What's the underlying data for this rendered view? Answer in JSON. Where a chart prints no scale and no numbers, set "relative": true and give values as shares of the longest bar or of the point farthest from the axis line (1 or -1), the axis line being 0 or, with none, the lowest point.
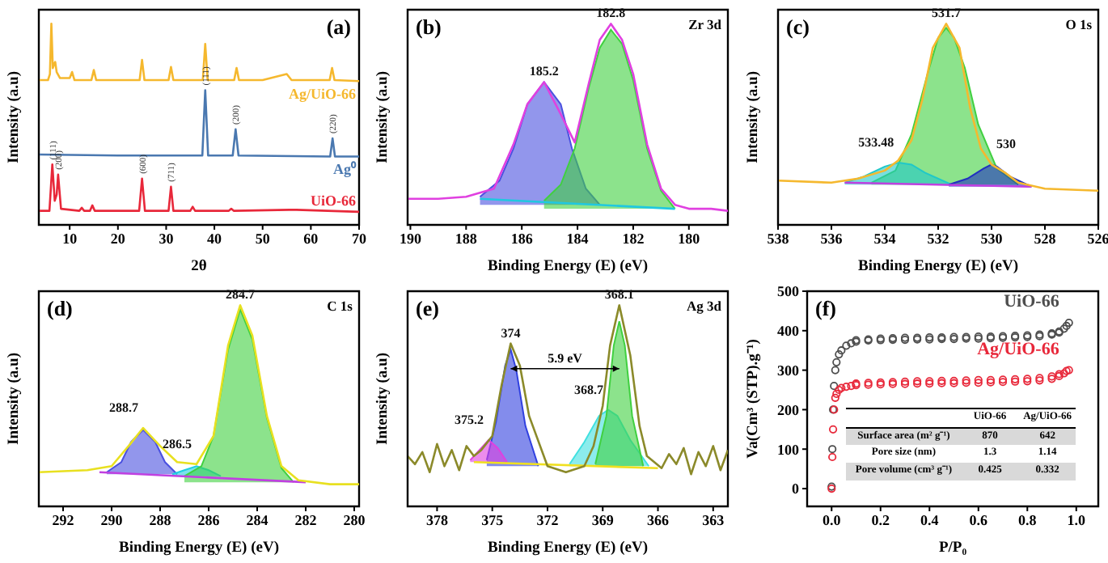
{
  "chart_data": [
    {
      "type": "line",
      "title": "(a)",
      "xlabel": "2θ",
      "ylabel": "Intensity (a.u)",
      "relative": true,
      "xlim": [
        3.6,
        70
      ],
      "xticks": [
        10,
        20,
        30,
        40,
        50,
        60,
        70
      ],
      "series": [
        {
          "name": "Ag/UiO-66",
          "color": "#f5b82e",
          "x": [
            3.6,
            5.5,
            5.9,
            6.2,
            6.5,
            6.8,
            7.0,
            7.3,
            8,
            10,
            10.5,
            11,
            14.5,
            15,
            15.5,
            20,
            24.5,
            25,
            25.5,
            30.5,
            31,
            31.5,
            35,
            37.6,
            38.1,
            38.6,
            42,
            44.1,
            44.6,
            45.1,
            50,
            55,
            56,
            60,
            63.9,
            64.4,
            64.9,
            70
          ],
          "values": [
            0.72,
            0.72,
            0.75,
            1.0,
            0.78,
            0.8,
            0.81,
            0.76,
            0.73,
            0.73,
            0.76,
            0.72,
            0.72,
            0.77,
            0.72,
            0.72,
            0.72,
            0.82,
            0.72,
            0.72,
            0.785,
            0.72,
            0.72,
            0.72,
            0.9,
            0.72,
            0.72,
            0.72,
            0.78,
            0.72,
            0.72,
            0.75,
            0.72,
            0.72,
            0.72,
            0.78,
            0.72,
            0.715
          ]
        },
        {
          "name": "Ag⁰",
          "color": "#4a78b0",
          "x": [
            3.6,
            20,
            37.5,
            38.1,
            38.7,
            43.8,
            44.4,
            45,
            64,
            64.5,
            65,
            70
          ],
          "values": [
            0.35,
            0.345,
            0.345,
            0.67,
            0.345,
            0.345,
            0.475,
            0.345,
            0.34,
            0.43,
            0.34,
            0.34
          ]
        },
        {
          "name": "UiO-66",
          "color": "#e8283a",
          "x": [
            3.6,
            5.8,
            6.4,
            6.9,
            7.3,
            7.6,
            8.2,
            12,
            12.5,
            13,
            14.2,
            14.7,
            15.2,
            24.4,
            25,
            25.6,
            30.5,
            31,
            31.5,
            35,
            35.5,
            36,
            43,
            43.5,
            44,
            55.5,
            57,
            70
          ],
          "values": [
            0.07,
            0.07,
            0.3,
            0.12,
            0.15,
            0.25,
            0.08,
            0.07,
            0.085,
            0.07,
            0.07,
            0.097,
            0.07,
            0.07,
            0.23,
            0.07,
            0.07,
            0.19,
            0.07,
            0.07,
            0.09,
            0.07,
            0.07,
            0.08,
            0.07,
            0.075,
            0.075,
            0.065
          ]
        }
      ],
      "annotations": [
        {
          "text": "(111)",
          "x": 38.1,
          "y": 0.67
        },
        {
          "text": "(200)",
          "x": 44.4,
          "y": 0.475
        },
        {
          "text": "(220)",
          "x": 64.5,
          "y": 0.43
        },
        {
          "text": "(111)",
          "x": 6.4,
          "y": 0.3
        },
        {
          "text": "(200)",
          "x": 7.6,
          "y": 0.25
        },
        {
          "text": "(600)",
          "x": 25,
          "y": 0.23
        },
        {
          "text": "(711)",
          "x": 31,
          "y": 0.19
        }
      ]
    },
    {
      "type": "area",
      "title": "(b)",
      "subtitle": "Zr 3d",
      "xlabel": "Binding Energy (E) (eV)",
      "ylabel": "Intensity (a.u)",
      "relative": true,
      "xlim": [
        190.1,
        178.6
      ],
      "xticks": [
        190,
        188,
        186,
        184,
        182,
        180
      ],
      "series": [
        {
          "color": "#4a50e0",
          "x": [
            183.2,
            183.7,
            184.2,
            184.6,
            185.2,
            185.8,
            186.3,
            186.8,
            187.5
          ],
          "values": [
            0.1,
            0.18,
            0.38,
            0.6,
            0.71,
            0.6,
            0.38,
            0.22,
            0.14
          ]
        },
        {
          "color": "#40d040",
          "x": [
            180.5,
            181,
            181.5,
            182,
            182.4,
            182.8,
            183.2,
            183.6,
            184.1,
            184.6,
            185.2
          ],
          "values": [
            0.08,
            0.17,
            0.38,
            0.72,
            0.9,
            0.97,
            0.88,
            0.68,
            0.38,
            0.2,
            0.12
          ]
        },
        {
          "type": "line",
          "color": "#20c8e0",
          "x": [
            180.5,
            187.5
          ],
          "values": [
            0.08,
            0.13
          ]
        },
        {
          "type": "line",
          "color": "#e040e0",
          "x": [
            178.6,
            179.2,
            180,
            180.5,
            181,
            181.5,
            182,
            182.4,
            182.8,
            183.2,
            183.6,
            184.1,
            184.6,
            185.2,
            185.8,
            186.3,
            187,
            188,
            189,
            190.1
          ],
          "values": [
            0.07,
            0.08,
            0.08,
            0.1,
            0.18,
            0.4,
            0.75,
            0.92,
            1.0,
            0.92,
            0.7,
            0.41,
            0.55,
            0.71,
            0.6,
            0.4,
            0.18,
            0.14,
            0.13,
            0.13
          ]
        }
      ],
      "annotations": [
        {
          "text": "185.2",
          "x": 185.2,
          "y": 0.71
        },
        {
          "text": "182.8",
          "x": 182.8,
          "y": 1.0
        }
      ]
    },
    {
      "type": "area",
      "title": "(c)",
      "subtitle": "O 1s",
      "xlabel": "Binding Energy (E) (eV)",
      "ylabel": "Intensity (a.u)",
      "relative": true,
      "xlim": [
        538,
        526
      ],
      "xticks": [
        538,
        536,
        534,
        532,
        530,
        528,
        526
      ],
      "series": [
        {
          "color": "#40d040",
          "x": [
            529,
            529.8,
            530.5,
            531,
            531.4,
            531.7,
            532,
            532.4,
            533,
            533.6,
            534.5
          ],
          "values": [
            0.2,
            0.28,
            0.5,
            0.78,
            0.93,
            0.98,
            0.93,
            0.75,
            0.45,
            0.27,
            0.21
          ]
        },
        {
          "color": "#20c8c8",
          "x": [
            531.5,
            532.5,
            533,
            533.48,
            534,
            534.8,
            535.5
          ],
          "values": [
            0.2,
            0.26,
            0.3,
            0.31,
            0.29,
            0.24,
            0.21
          ]
        },
        {
          "color": "#2030c0",
          "x": [
            528.5,
            529.3,
            529.8,
            530,
            530.3,
            530.9,
            531.6
          ],
          "values": [
            0.19,
            0.24,
            0.29,
            0.3,
            0.28,
            0.23,
            0.2
          ]
        },
        {
          "type": "line",
          "color": "#c040e0",
          "x": [
            528.5,
            535.5
          ],
          "values": [
            0.19,
            0.21
          ]
        },
        {
          "type": "line",
          "color": "#f5b82e",
          "x": [
            526,
            528,
            529,
            529.5,
            530,
            530.4,
            530.8,
            531.2,
            531.7,
            532.2,
            532.6,
            533,
            533.5,
            534,
            535,
            536,
            538
          ],
          "values": [
            0.17,
            0.18,
            0.21,
            0.26,
            0.3,
            0.38,
            0.58,
            0.88,
            1.0,
            0.88,
            0.62,
            0.42,
            0.32,
            0.27,
            0.23,
            0.21,
            0.22
          ]
        }
      ],
      "annotations": [
        {
          "text": "531.7",
          "x": 531.7,
          "y": 1.0
        },
        {
          "text": "533.48",
          "x": 533.48,
          "y": 0.31
        },
        {
          "text": "530",
          "x": 530,
          "y": 0.3
        }
      ]
    },
    {
      "type": "area",
      "title": "(d)",
      "subtitle": "C 1s",
      "xlabel": "Binding Energy (E) (eV)",
      "ylabel": "Intensity (a.u)",
      "relative": true,
      "xlim": [
        293,
        279.8
      ],
      "xticks": [
        292,
        290,
        288,
        286,
        284,
        282,
        280
      ],
      "series": [
        {
          "color": "#4a50e0",
          "x": [
            287.3,
            287.8,
            288.2,
            288.7,
            289.2,
            289.6,
            290.2
          ],
          "values": [
            0.16,
            0.22,
            0.32,
            0.38,
            0.32,
            0.22,
            0.17
          ]
        },
        {
          "color": "#20d0e0",
          "x": [
            285.5,
            286,
            286.5,
            287,
            287.5
          ],
          "values": [
            0.15,
            0.18,
            0.2,
            0.18,
            0.16
          ]
        },
        {
          "color": "#40d040",
          "x": [
            282.5,
            283,
            283.6,
            284.2,
            284.7,
            285.2,
            285.8,
            286.3,
            287
          ],
          "values": [
            0.12,
            0.19,
            0.44,
            0.83,
            0.98,
            0.78,
            0.35,
            0.2,
            0.15
          ]
        },
        {
          "type": "line",
          "color": "#c040e0",
          "x": [
            282,
            290.5
          ],
          "values": [
            0.12,
            0.17
          ]
        },
        {
          "type": "line",
          "color": "#e8e020",
          "x": [
            279.8,
            281,
            282.3,
            283,
            283.6,
            284.2,
            284.7,
            285.2,
            285.8,
            286.5,
            287.3,
            288,
            288.7,
            289.3,
            290,
            291,
            293
          ],
          "values": [
            0.11,
            0.11,
            0.13,
            0.2,
            0.45,
            0.85,
            1.0,
            0.8,
            0.35,
            0.21,
            0.22,
            0.3,
            0.39,
            0.3,
            0.2,
            0.18,
            0.17
          ]
        }
      ],
      "annotations": [
        {
          "text": "284.7",
          "x": 284.7,
          "y": 1.0
        },
        {
          "text": "288.7",
          "x": 288.7,
          "y": 0.39
        },
        {
          "text": "286.5",
          "x": 286.5,
          "y": 0.21
        }
      ]
    },
    {
      "type": "area",
      "title": "(e)",
      "subtitle": "Ag 3d",
      "xlabel": "Binding Energy (E) (eV)",
      "ylabel": "Intensity (a.u)",
      "relative": true,
      "xlim": [
        379.6,
        362.2
      ],
      "xticks": [
        378,
        375,
        372,
        369,
        366,
        363
      ],
      "series": [
        {
          "color": "#3040e0",
          "x": [
            372.5,
            373.2,
            373.7,
            374,
            374.3,
            374.8,
            375.3
          ],
          "values": [
            0.2,
            0.4,
            0.68,
            0.78,
            0.7,
            0.42,
            0.23
          ]
        },
        {
          "color": "#e040e0",
          "x": [
            374.2,
            374.7,
            375.2,
            375.7,
            376.2
          ],
          "values": [
            0.22,
            0.29,
            0.33,
            0.28,
            0.23
          ]
        },
        {
          "color": "#40e0e0",
          "x": [
            366.5,
            367.5,
            368.2,
            368.7,
            369.2,
            370,
            370.8
          ],
          "values": [
            0.2,
            0.33,
            0.45,
            0.48,
            0.45,
            0.32,
            0.21
          ]
        },
        {
          "color": "#40d040",
          "x": [
            366.8,
            367.4,
            367.8,
            368.1,
            368.4,
            368.8,
            369.4
          ],
          "values": [
            0.2,
            0.45,
            0.8,
            0.92,
            0.8,
            0.45,
            0.21
          ]
        },
        {
          "type": "line",
          "color": "#f0e020",
          "x": [
            366,
            376
          ],
          "values": [
            0.19,
            0.22
          ]
        },
        {
          "type": "line",
          "color": "#8b8a2a",
          "x": [
            362.2,
            362.6,
            363,
            363.4,
            363.8,
            364.2,
            364.6,
            365,
            365.4,
            365.8,
            366.2,
            366.6,
            367,
            367.5,
            368.1,
            368.6,
            369,
            369.5,
            370,
            371,
            372,
            373,
            373.5,
            374,
            374.5,
            375,
            375.6,
            376,
            376.4,
            376.8,
            377.2,
            377.6,
            378,
            378.4,
            378.8,
            379.2,
            379.6
          ],
          "values": [
            0.28,
            0.18,
            0.3,
            0.2,
            0.27,
            0.16,
            0.29,
            0.21,
            0.26,
            0.19,
            0.22,
            0.25,
            0.4,
            0.75,
            1.0,
            0.8,
            0.5,
            0.3,
            0.2,
            0.17,
            0.2,
            0.45,
            0.7,
            0.81,
            0.6,
            0.35,
            0.28,
            0.25,
            0.3,
            0.18,
            0.28,
            0.2,
            0.31,
            0.17,
            0.27,
            0.21,
            0.25
          ]
        }
      ],
      "annotations": [
        {
          "text": "374",
          "x": 374,
          "y": 0.81
        },
        {
          "text": "368.1",
          "x": 368.1,
          "y": 1.0
        },
        {
          "text": "375.2",
          "x": 375.2,
          "y": 0.33
        },
        {
          "text": "368.7",
          "x": 368.7,
          "y": 0.48
        },
        "5.9 eV"
      ]
    },
    {
      "type": "scatter",
      "title": "(f)",
      "xlabel": "P/P₀",
      "ylabel": "Va(Cm³ (STP).g⁻¹)",
      "marker": "circle",
      "xlim": [
        -0.1,
        1.09
      ],
      "xticks": [
        {
          "value": 0,
          "label": "0.0"
        },
        0.2,
        0.4,
        0.6,
        0.8,
        {
          "value": 1,
          "label": "1.0"
        }
      ],
      "ylim": [
        -45,
        500
      ],
      "yticks": [
        0,
        100,
        200,
        300,
        400,
        500
      ],
      "x": [
        0.0,
        0.003,
        0.006,
        0.01,
        0.015,
        0.02,
        0.03,
        0.04,
        0.06,
        0.08,
        0.1,
        0.15,
        0.2,
        0.25,
        0.3,
        0.35,
        0.4,
        0.45,
        0.5,
        0.55,
        0.6,
        0.65,
        0.7,
        0.75,
        0.8,
        0.85,
        0.9,
        0.93,
        0.95,
        0.97,
        0.96,
        0.93,
        0.9,
        0.85,
        0.8,
        0.75,
        0.7,
        0.65,
        0.6,
        0.55,
        0.5,
        0.45,
        0.4,
        0.35,
        0.3,
        0.25,
        0.2,
        0.15,
        0.1
      ],
      "series": [
        {
          "name": "UiO-66",
          "color": "#4d4d4d",
          "values": [
            5,
            100,
            200,
            260,
            300,
            320,
            340,
            350,
            362,
            368,
            372,
            375,
            376,
            377,
            377,
            378,
            378,
            379,
            379,
            380,
            380,
            381,
            382,
            383,
            384,
            386,
            390,
            395,
            405,
            420,
            412,
            398,
            393,
            390,
            388,
            387,
            386,
            385,
            385,
            384,
            384,
            383,
            383,
            382,
            382,
            381,
            380,
            378,
            376
          ]
        },
        {
          "name": "Ag/UiO-66",
          "color": "#e8283a",
          "values": [
            0,
            80,
            150,
            200,
            230,
            240,
            250,
            255,
            258,
            260,
            262,
            263,
            264,
            265,
            265,
            266,
            266,
            267,
            267,
            268,
            268,
            269,
            270,
            271,
            272,
            274,
            278,
            285,
            292,
            300,
            298,
            290,
            284,
            280,
            278,
            277,
            276,
            275,
            275,
            274,
            273,
            273,
            272,
            272,
            271,
            270,
            269,
            268,
            266
          ]
        }
      ],
      "annotations": [
        "UiO-66",
        "Ag/UiO-66",
        "Surface area (m² g⁻¹)",
        "870",
        "642",
        "Pore size (nm)",
        "1.3",
        "1.14",
        "Pore volume (cm³ g⁻¹)",
        "0.425",
        "0.332"
      ]
    }
  ]
}
